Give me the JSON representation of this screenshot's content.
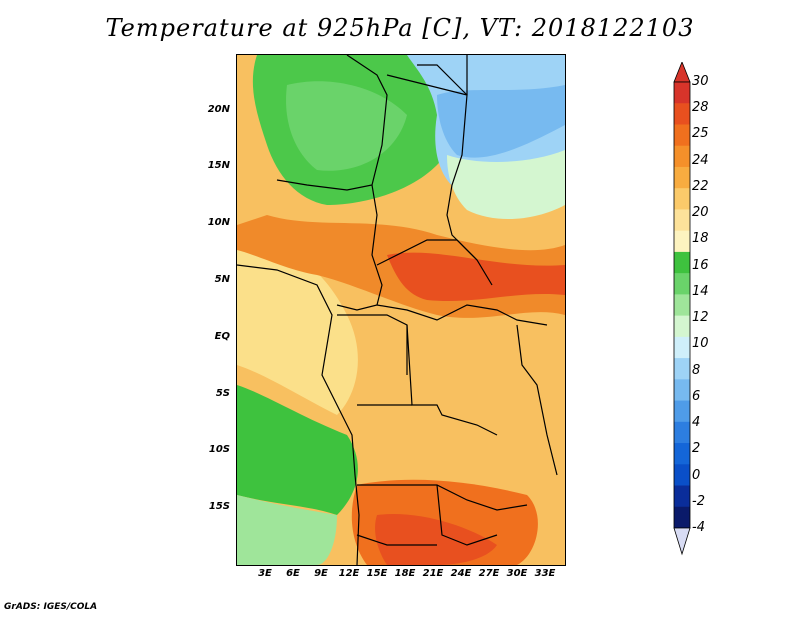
{
  "title": "Temperature at 925hPa [C], VT: 2018122103",
  "footer": "GrADS: IGES/COLA",
  "map": {
    "projection": "lat-lon",
    "lon_range": [
      0,
      35
    ],
    "lat_range": [
      -20,
      25
    ],
    "y_ticks": [
      "20N",
      "15N",
      "10N",
      "5N",
      "EQ",
      "5S",
      "10S",
      "15S"
    ],
    "x_ticks": [
      "3E",
      "6E",
      "9E",
      "12E",
      "15E",
      "18E",
      "21E",
      "24E",
      "27E",
      "30E",
      "33E"
    ]
  },
  "colorbar": {
    "labels": [
      "30",
      "28",
      "25",
      "24",
      "22",
      "20",
      "18",
      "16",
      "14",
      "12",
      "10",
      "8",
      "6",
      "4",
      "2",
      "0",
      "-2",
      "-4"
    ],
    "colors": [
      "#d7342a",
      "#e8501f",
      "#f0701e",
      "#f59a2b",
      "#f8b550",
      "#fbd27a",
      "#fdeea6",
      "#3ec23e",
      "#6ad36a",
      "#9fe59a",
      "#d4f6d0",
      "#cfeffa",
      "#9ed3f6",
      "#77baf0",
      "#4f9ce8",
      "#2d7ee0",
      "#1466d8",
      "#0a4fc8",
      "#0a2d9a",
      "#0a1a6a"
    ]
  }
}
